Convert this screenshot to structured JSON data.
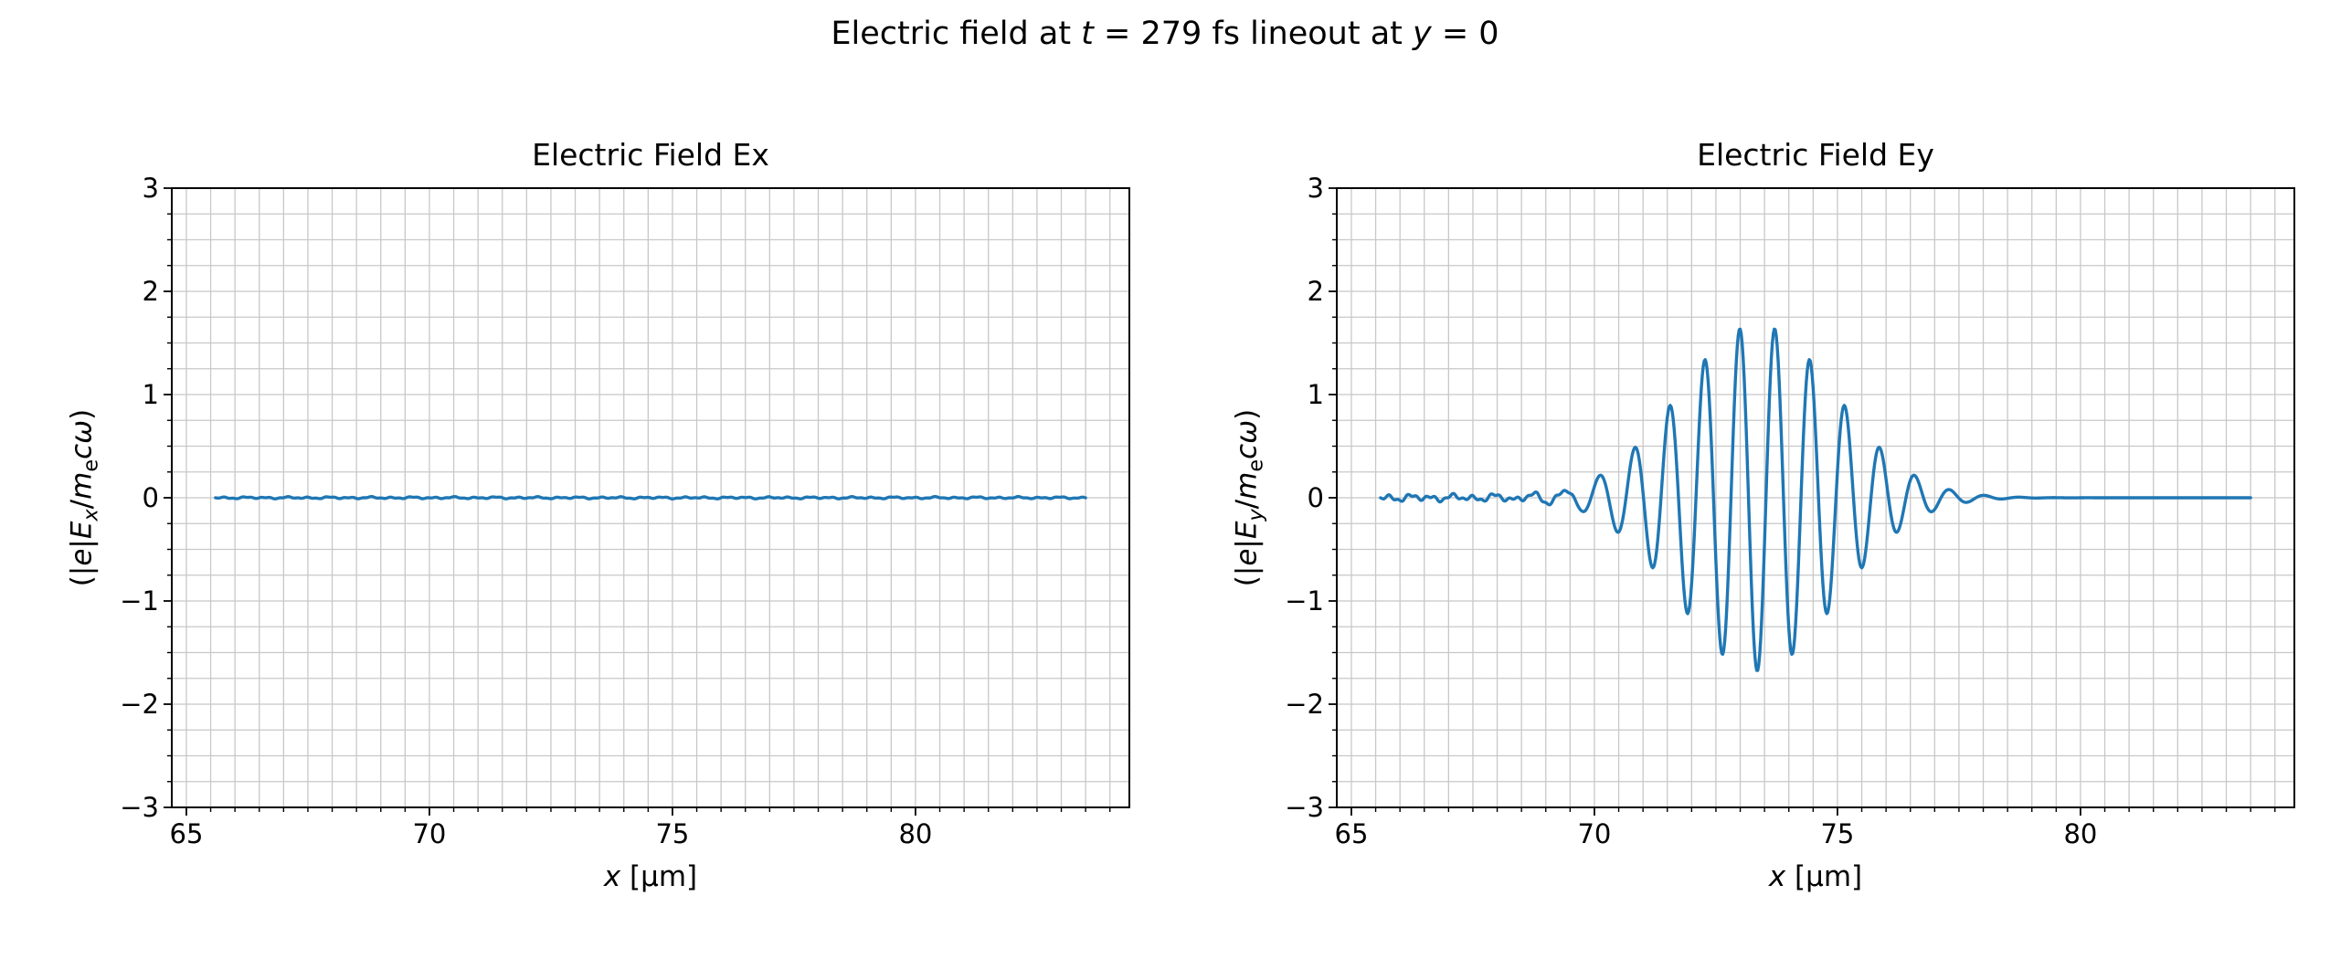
{
  "figure": {
    "title_segments": [
      {
        "text": "Electric field at "
      },
      {
        "text": "t",
        "italic": true
      },
      {
        "text": " = 279 fs lineout at "
      },
      {
        "text": "y",
        "italic": true
      },
      {
        "text": " = 0"
      }
    ],
    "background_color": "#ffffff",
    "grid_color": "#c8c8c8",
    "spine_color": "#000000",
    "tick_color": "#000000"
  },
  "chart_data": [
    {
      "type": "line",
      "title": "Electric Field Ex",
      "xlabel_segments": [
        {
          "text": "x",
          "italic": true
        },
        {
          "text": " [µm]"
        }
      ],
      "ylabel_segments": [
        {
          "text": "(|"
        },
        {
          "text": "e",
          "italic": true
        },
        {
          "text": "|"
        },
        {
          "text": "E",
          "italic": true
        },
        {
          "text": "x",
          "italic": true,
          "sub": true
        },
        {
          "text": "/"
        },
        {
          "text": "m",
          "italic": true
        },
        {
          "text": "e",
          "sub": true
        },
        {
          "text": "c",
          "italic": true
        },
        {
          "text": "ω",
          "italic": true
        },
        {
          "text": ")"
        }
      ],
      "xlim": [
        64.7,
        84.4
      ],
      "ylim": [
        -3,
        3
      ],
      "xticks": [
        65,
        70,
        75,
        80
      ],
      "xtick_labels": [
        "65",
        "70",
        "75",
        "80"
      ],
      "yticks": [
        -3,
        -2,
        -1,
        0,
        1,
        2,
        3
      ],
      "ytick_labels": [
        "−3",
        "−2",
        "−1",
        "0",
        "1",
        "2",
        "3"
      ],
      "x_minor_step": 0.5,
      "y_minor_step": 0.25,
      "grid": "both",
      "line_color": "#1f77b4",
      "series": {
        "x_start": 65.6,
        "x_end": 83.5,
        "sample_step": 0.02,
        "baseline": 0,
        "noise": {
          "amplitude": 0.012
        },
        "pulse": null
      }
    },
    {
      "type": "line",
      "title": "Electric Field Ey",
      "xlabel_segments": [
        {
          "text": "x",
          "italic": true
        },
        {
          "text": " [µm]"
        }
      ],
      "ylabel_segments": [
        {
          "text": "(|"
        },
        {
          "text": "e",
          "italic": true
        },
        {
          "text": "|"
        },
        {
          "text": "E",
          "italic": true
        },
        {
          "text": "y",
          "italic": true,
          "sub": true
        },
        {
          "text": "/"
        },
        {
          "text": "m",
          "italic": true
        },
        {
          "text": "e",
          "sub": true
        },
        {
          "text": "c",
          "italic": true
        },
        {
          "text": "ω",
          "italic": true
        },
        {
          "text": ")"
        }
      ],
      "xlim": [
        64.7,
        84.4
      ],
      "ylim": [
        -3,
        3
      ],
      "xticks": [
        65,
        70,
        75,
        80
      ],
      "xtick_labels": [
        "65",
        "70",
        "75",
        "80"
      ],
      "yticks": [
        -3,
        -2,
        -1,
        0,
        1,
        2,
        3
      ],
      "ytick_labels": [
        "−3",
        "−2",
        "−1",
        "0",
        "1",
        "2",
        "3"
      ],
      "x_minor_step": 0.5,
      "y_minor_step": 0.25,
      "grid": "both",
      "line_color": "#1f77b4",
      "series": {
        "x_start": 65.6,
        "x_end": 83.5,
        "sample_step": 0.02,
        "baseline": 0,
        "noise": {
          "amplitude": 0.045,
          "fade_start": 69.2,
          "fade_end": 69.9
        },
        "pulse": {
          "center": 73.35,
          "sigma": 1.6,
          "amplitude": 1.68,
          "wavelength": 0.72,
          "crest": 72.99
        }
      }
    }
  ]
}
